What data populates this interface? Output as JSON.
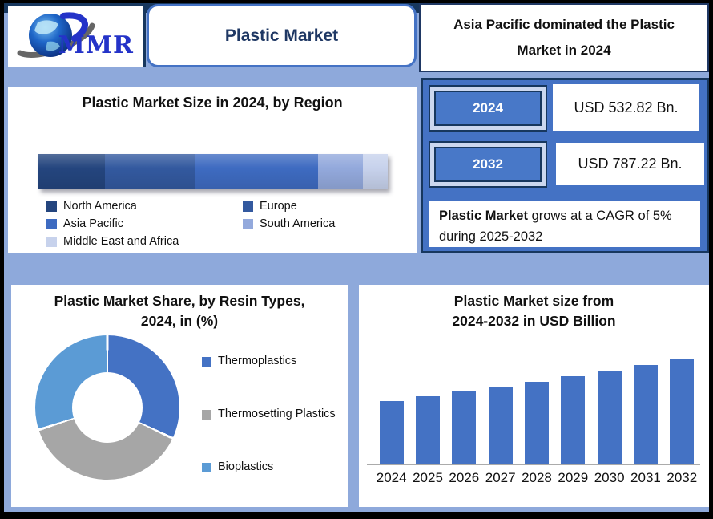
{
  "header": {
    "logo_text": "MMR",
    "title": "Plastic Market",
    "headline_line1": "Asia Pacific dominated the Plastic",
    "headline_line2": "Market in 2024"
  },
  "stats_panel": {
    "rows": [
      {
        "year": "2024",
        "value": "USD 532.82 Bn."
      },
      {
        "year": "2032",
        "value": "USD 787.22 Bn."
      }
    ],
    "cagr_bold": "Plastic Market",
    "cagr_line1_rest": " grows at a CAGR of 5%",
    "cagr_line2": "during 2025-2032"
  },
  "colors": {
    "background": "#8EA9DB",
    "navy": "#17375E",
    "accent_blue": "#4472C4",
    "title_text": "#1F3864"
  },
  "chart_data": [
    {
      "id": "region_share",
      "type": "bar",
      "variant": "stacked-horizontal",
      "title": "Plastic Market Size in 2024, by Region",
      "categories": [
        "North America",
        "Europe",
        "Asia Pacific",
        "South America",
        "Middle East and Africa"
      ],
      "values": [
        19,
        26,
        35,
        13,
        7
      ],
      "unit": "percent-share (estimated from segment widths)",
      "colors": [
        "#24457E",
        "#33599F",
        "#3E6BC1",
        "#93A9DC",
        "#C7D2EC"
      ],
      "legend_position": "bottom",
      "grid": false
    },
    {
      "id": "resin_share",
      "type": "pie",
      "variant": "donut",
      "title": "Plastic Market Share, by Resin Types, 2024, in (%)",
      "title_line1": "Plastic Market Share, by Resin Types,",
      "title_line2": "2024, in (%)",
      "categories": [
        "Thermoplastics",
        "Thermosetting Plastics",
        "Bioplastics"
      ],
      "values": [
        32,
        38,
        30
      ],
      "colors": [
        "#4472C4",
        "#A6A6A6",
        "#5B9BD5"
      ],
      "legend_position": "right",
      "start_angle_deg": 0,
      "direction": "clockwise"
    },
    {
      "id": "market_size",
      "type": "bar",
      "title": "Plastic Market size from 2024-2032 in USD Billion",
      "title_line1": "Plastic Market size from",
      "title_line2": "2024-2032 in USD Billion",
      "categories": [
        "2024",
        "2025",
        "2026",
        "2027",
        "2028",
        "2029",
        "2030",
        "2031",
        "2032"
      ],
      "values": [
        532.82,
        559.46,
        587.43,
        616.8,
        647.64,
        680.03,
        714.03,
        749.73,
        787.22
      ],
      "bar_color": "#4472C4",
      "ylabel": "USD Billion",
      "ylim": [
        150,
        850
      ],
      "grid": false,
      "legend_position": "none"
    }
  ]
}
